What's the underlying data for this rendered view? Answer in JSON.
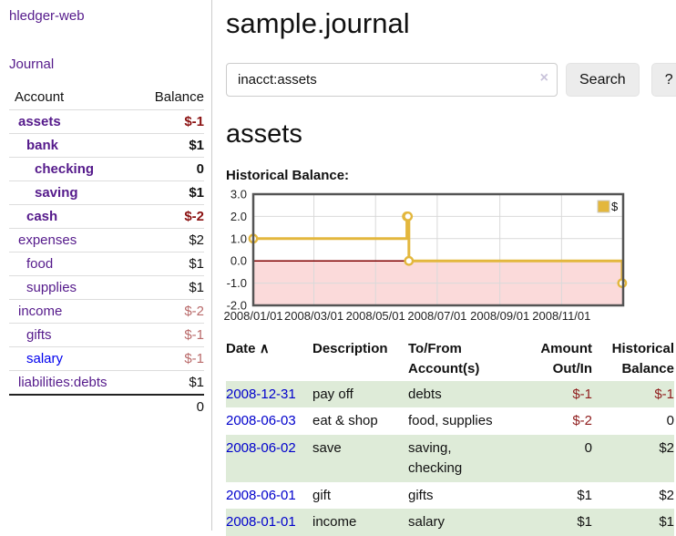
{
  "app": {
    "brand": "hledger-web",
    "nav_journal": "Journal"
  },
  "colors": {
    "link_purple": "#551a8b",
    "link_blue": "#0000ee",
    "date_link_blue": "#0000cc",
    "negative_dark_red": "#8b1212",
    "negative_muted_rose": "#b96a6a",
    "row_stripe_green": "#deebd8",
    "chart_line_gold": "#e3b73d",
    "chart_negative_fill": "#fbdada",
    "chart_zero_line": "#800000",
    "button_gray": "#ececec"
  },
  "sidebar": {
    "headers": {
      "account": "Account",
      "balance": "Balance"
    },
    "rows": [
      {
        "account": "assets",
        "balance": "$-1",
        "level": 0,
        "bold": true,
        "balance_class": "neg"
      },
      {
        "account": "bank",
        "balance": "$1",
        "level": 1,
        "bold": true,
        "balance_class": "pos"
      },
      {
        "account": "checking",
        "balance": "0",
        "level": 2,
        "bold": true,
        "balance_class": "pos"
      },
      {
        "account": "saving",
        "balance": "$1",
        "level": 2,
        "bold": true,
        "balance_class": "pos"
      },
      {
        "account": "cash",
        "balance": "$-2",
        "level": 1,
        "bold": true,
        "balance_class": "neg"
      },
      {
        "account": "expenses",
        "balance": "$2",
        "level": 0,
        "bold": false,
        "balance_class": "pos"
      },
      {
        "account": "food",
        "balance": "$1",
        "level": 1,
        "bold": false,
        "balance_class": "pos"
      },
      {
        "account": "supplies",
        "balance": "$1",
        "level": 1,
        "bold": false,
        "balance_class": "pos"
      },
      {
        "account": "income",
        "balance": "$-2",
        "level": 0,
        "bold": false,
        "balance_class": "negm"
      },
      {
        "account": "gifts",
        "balance": "$-1",
        "level": 1,
        "bold": false,
        "balance_class": "negm"
      },
      {
        "account": "salary",
        "balance": "$-1",
        "level": 1,
        "bold": false,
        "balance_class": "negm",
        "link_color": "blue"
      },
      {
        "account": "liabilities:debts",
        "balance": "$1",
        "level": 0,
        "bold": false,
        "balance_class": "pos"
      }
    ],
    "total": "0"
  },
  "header": {
    "title": "sample.journal"
  },
  "search": {
    "value": "inacct:assets",
    "clear_icon": "×",
    "button_label": "Search",
    "help_label": "?"
  },
  "account_page": {
    "title": "assets",
    "chart_label": "Historical Balance:"
  },
  "chart_data": {
    "type": "line",
    "title": "Historical Balance",
    "step": true,
    "series": [
      {
        "name": "$",
        "color": "#e3b73d",
        "points": [
          {
            "x": "2008/01/01",
            "y": 1
          },
          {
            "x": "2008/06/01",
            "y": 2
          },
          {
            "x": "2008/06/02",
            "y": 2
          },
          {
            "x": "2008/06/03",
            "y": 0
          },
          {
            "x": "2008/12/31",
            "y": -1
          }
        ]
      }
    ],
    "xticks": [
      "2008/01/01",
      "2008/03/01",
      "2008/05/01",
      "2008/07/01",
      "2008/09/01",
      "2008/11/01"
    ],
    "yticks": [
      3.0,
      2.0,
      1.0,
      0.0,
      -1.0,
      -2.0
    ],
    "xlim": [
      "2008/01/01",
      "2009/01/01"
    ],
    "ylim": [
      -2,
      3
    ],
    "grid": true,
    "legend_position": "top-right",
    "legend_label": "$",
    "negative_fill": "#fbdada",
    "zero_line_color": "#800000"
  },
  "register": {
    "sort_arrow": "∧",
    "columns": [
      {
        "label": "Date"
      },
      {
        "label": "Description"
      },
      {
        "label": "To/From Account(s)"
      },
      {
        "label": "Amount Out/In"
      },
      {
        "label": "Historical Balance"
      }
    ],
    "rows": [
      {
        "date": "2008-12-31",
        "description": "pay off",
        "accounts": "debts",
        "amount": "$-1",
        "amount_neg": true,
        "balance": "$-1",
        "balance_neg": true
      },
      {
        "date": "2008-06-03",
        "description": "eat & shop",
        "accounts": "food, supplies",
        "amount": "$-2",
        "amount_neg": true,
        "balance": "0",
        "balance_neg": false
      },
      {
        "date": "2008-06-02",
        "description": "save",
        "accounts": "saving, checking",
        "amount": "0",
        "amount_neg": false,
        "balance": "$2",
        "balance_neg": false
      },
      {
        "date": "2008-06-01",
        "description": "gift",
        "accounts": "gifts",
        "amount": "$1",
        "amount_neg": false,
        "balance": "$2",
        "balance_neg": false
      },
      {
        "date": "2008-01-01",
        "description": "income",
        "accounts": "salary",
        "amount": "$1",
        "amount_neg": false,
        "balance": "$1",
        "balance_neg": false
      }
    ]
  }
}
